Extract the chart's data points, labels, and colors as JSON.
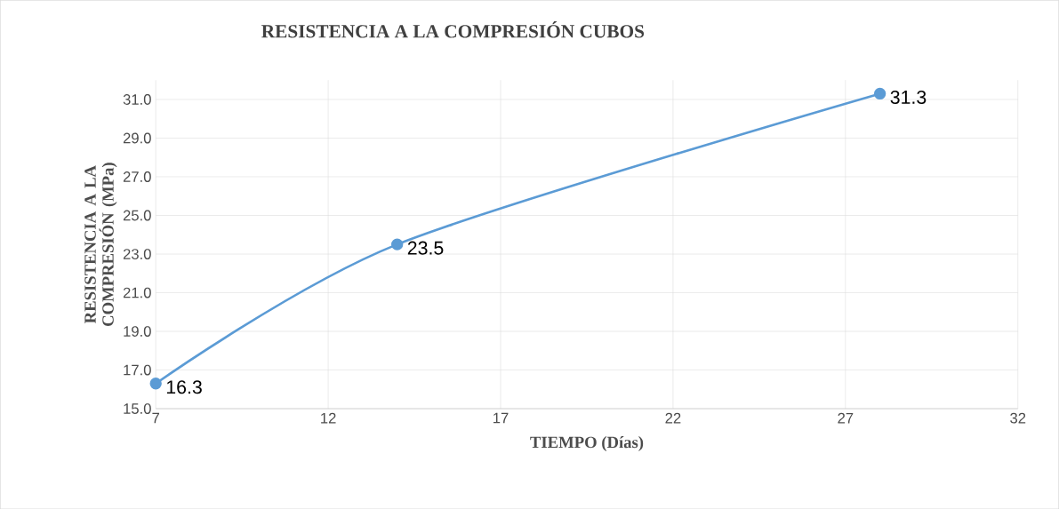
{
  "chart_data": {
    "type": "line",
    "title": "RESISTENCIA A LA COMPRESIÓN CUBOS",
    "xlabel": "TIEMPO (Días)",
    "ylabel": "RESISTENCIA A LA COMPRESIÓN (MPa)",
    "x": [
      7,
      14,
      28
    ],
    "series": [
      {
        "color": "#5b9bd5",
        "values": [
          16.3,
          23.5,
          31.3
        ]
      }
    ],
    "xlim": [
      7,
      32
    ],
    "xticks": [
      7,
      12,
      17,
      22,
      27,
      32
    ],
    "ylim": [
      15,
      32
    ],
    "yticks": [
      {
        "value": 15,
        "label": "15.0"
      },
      {
        "value": 17,
        "label": "17.0"
      },
      {
        "value": 19,
        "label": "19.0"
      },
      {
        "value": 21,
        "label": "21.0"
      },
      {
        "value": 23,
        "label": "23.0"
      },
      {
        "value": 25,
        "label": "25.0"
      },
      {
        "value": 27,
        "label": "27.0"
      },
      {
        "value": 29,
        "label": "29.0"
      },
      {
        "value": 31,
        "label": "31.0"
      }
    ],
    "grid": true,
    "marker": "circle",
    "line_style": "solid",
    "data_labels": true
  }
}
